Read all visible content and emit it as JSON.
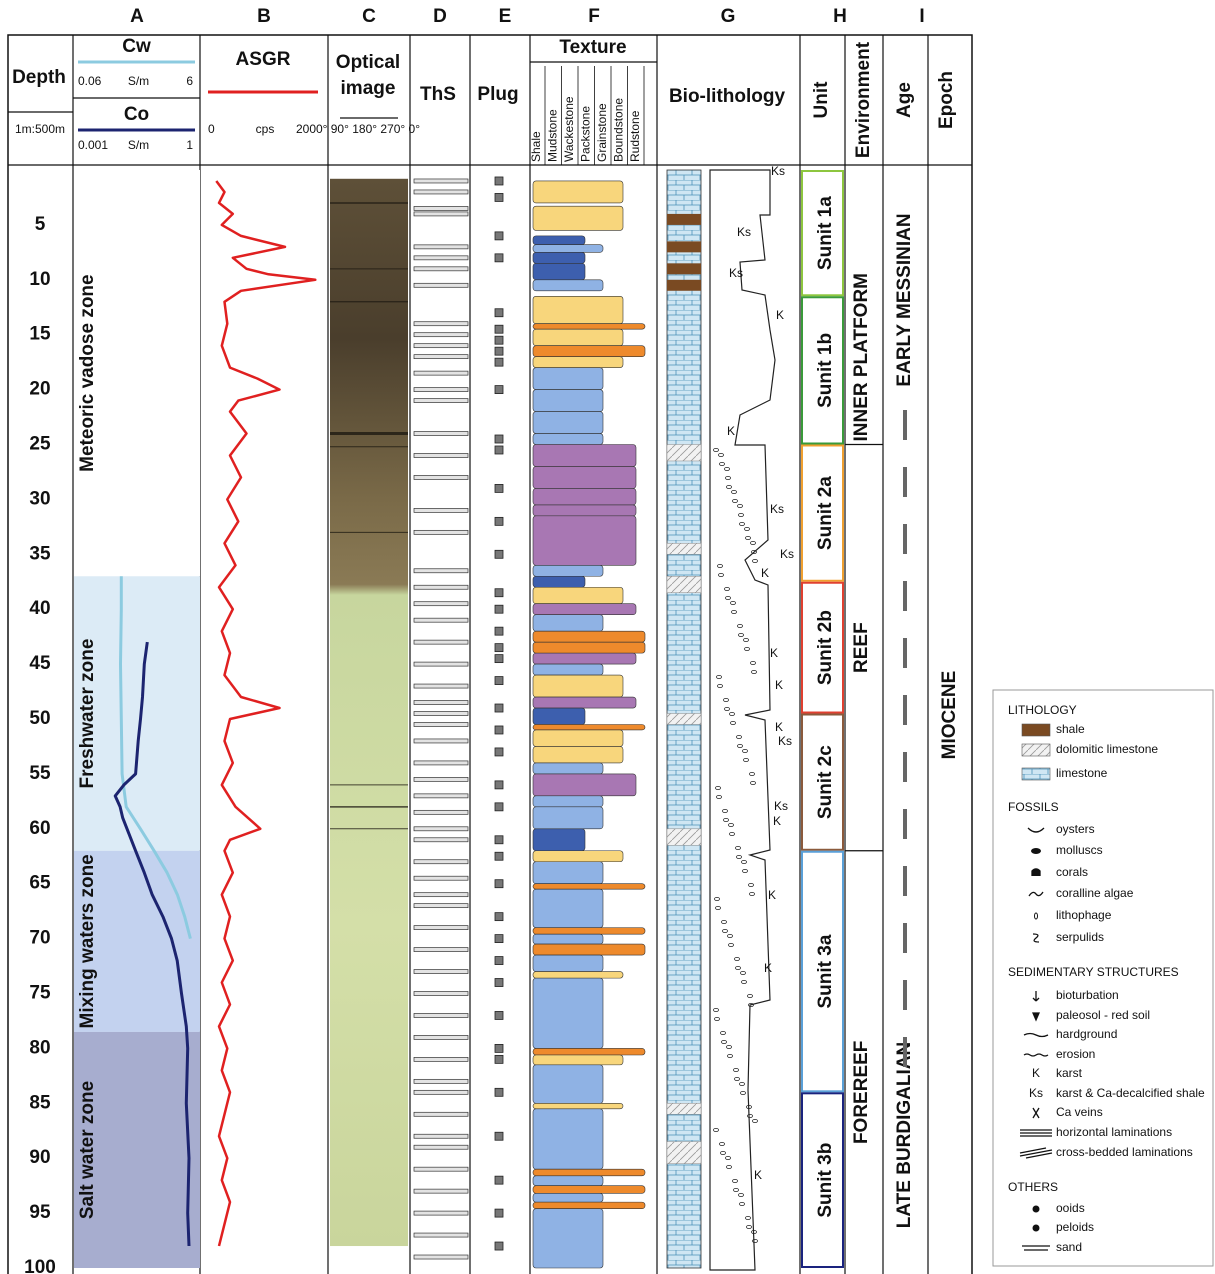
{
  "column_letters": [
    "A",
    "B",
    "C",
    "D",
    "E",
    "F",
    "G",
    "H",
    "I"
  ],
  "depth_header": {
    "title": "Depth",
    "scale": "1m:500m"
  },
  "depth_ticks": [
    5,
    10,
    15,
    20,
    25,
    30,
    35,
    40,
    45,
    50,
    55,
    60,
    65,
    70,
    75,
    80,
    85,
    90,
    95,
    100
  ],
  "cw": {
    "title": "Cw",
    "min": 0.06,
    "unit": "S/m",
    "max": 6,
    "scale": "log",
    "color": "#8ccbe0",
    "depth": [
      37,
      40,
      45,
      50,
      55,
      58,
      60,
      62,
      64,
      66,
      68,
      70
    ],
    "values": [
      0.33,
      0.33,
      0.32,
      0.33,
      0.34,
      0.4,
      0.7,
      1.2,
      2,
      3,
      4,
      5
    ]
  },
  "co": {
    "title": "Co",
    "min": 0.001,
    "unit": "S/m",
    "max": 1,
    "scale": "log",
    "color": "#1c2470",
    "depth": [
      43,
      45,
      48,
      50,
      52,
      55,
      56,
      57,
      58,
      59,
      60,
      62,
      64,
      66,
      68,
      70,
      72,
      75,
      78,
      80,
      85,
      90,
      95,
      98
    ],
    "values": [
      0.06,
      0.05,
      0.045,
      0.04,
      0.035,
      0.03,
      0.015,
      0.009,
      0.012,
      0.014,
      0.018,
      0.03,
      0.05,
      0.08,
      0.15,
      0.25,
      0.35,
      0.45,
      0.6,
      0.65,
      0.6,
      0.7,
      0.65,
      0.7
    ]
  },
  "asgr": {
    "title": "ASGR",
    "min": 0,
    "unit": "cps",
    "max": 200,
    "scale": "linear",
    "color": "#e02020",
    "depth": [
      1,
      2,
      3,
      4,
      5,
      6,
      7,
      8,
      9,
      9.5,
      10,
      11,
      12,
      14,
      16,
      18,
      19,
      20,
      21,
      22,
      24,
      26,
      28,
      30,
      32,
      34,
      36,
      38,
      40,
      42,
      44,
      46,
      48,
      49,
      50,
      52,
      54,
      56,
      58,
      60,
      61,
      62,
      64,
      66,
      68,
      70,
      72,
      74,
      76,
      78,
      80,
      82,
      84,
      86,
      88,
      90,
      92,
      94,
      96,
      98
    ],
    "values": [
      15,
      30,
      20,
      45,
      25,
      60,
      140,
      45,
      70,
      110,
      195,
      60,
      30,
      35,
      25,
      40,
      90,
      130,
      55,
      40,
      70,
      40,
      60,
      35,
      55,
      30,
      50,
      20,
      45,
      25,
      40,
      30,
      60,
      130,
      40,
      30,
      45,
      25,
      50,
      95,
      40,
      30,
      45,
      25,
      40,
      30,
      45,
      25,
      40,
      20,
      35,
      25,
      40,
      30,
      20,
      35,
      25,
      40,
      30,
      20
    ]
  },
  "zones": [
    {
      "label": "Meteoric vadose zone",
      "top": 0,
      "base": 37,
      "color": "#ffffff"
    },
    {
      "label": "Freshwater zone",
      "top": 37,
      "base": 62,
      "color": "#dcebf6"
    },
    {
      "label": "Mixing waters zone",
      "top": 62,
      "base": 78.5,
      "color": "#c3d2ef"
    },
    {
      "label": "Salt water zone",
      "top": 78.5,
      "base": 100,
      "color": "#a7adcf"
    }
  ],
  "optical": {
    "title_1": "Optical",
    "title_2": "image",
    "azimuth": "0° 90° 180° 270° 0°"
  },
  "ths": {
    "title": "ThS",
    "depths": [
      1,
      2,
      3.5,
      4,
      7,
      8,
      9,
      10.5,
      14,
      15,
      16,
      17,
      18.5,
      20,
      21,
      24,
      26,
      28,
      31,
      33,
      36.5,
      38,
      39.5,
      41,
      43,
      45,
      47,
      48.5,
      49.5,
      50.5,
      52,
      54,
      55.5,
      57,
      58.5,
      60,
      61,
      63,
      64.5,
      66,
      67,
      69,
      71,
      73,
      75,
      77,
      79,
      81,
      83,
      84,
      86,
      88,
      89,
      91,
      93,
      95,
      97,
      99
    ]
  },
  "plug": {
    "title": "Plug",
    "depths": [
      1,
      2.5,
      6,
      8,
      13,
      14.5,
      15.5,
      16.5,
      17.5,
      20,
      24.5,
      25.5,
      29,
      32,
      35,
      38.5,
      40,
      42,
      43.5,
      44.5,
      46.5,
      49,
      51,
      53,
      56,
      58,
      61,
      62.5,
      65,
      68,
      70,
      72,
      74,
      77,
      80,
      81,
      84,
      88,
      92,
      95,
      98
    ]
  },
  "texture": {
    "title": "Texture",
    "classes": [
      {
        "name": "Shale",
        "color": "#777777"
      },
      {
        "name": "Mudstone",
        "color": "#3d5fae"
      },
      {
        "name": "Wackestone",
        "color": "#8fb2e4"
      },
      {
        "name": "Packstone",
        "color": "#f8d67c"
      },
      {
        "name": "Grainstone",
        "color": "#ee8a2c"
      },
      {
        "name": "Boundstone",
        "color": "#a877b3"
      },
      {
        "name": "Rudstone",
        "color": "#cccccc"
      }
    ],
    "beds": [
      [
        1,
        3,
        3
      ],
      [
        3.3,
        5.5,
        3
      ],
      [
        6,
        6.8,
        1
      ],
      [
        6.8,
        7.5,
        2
      ],
      [
        7.5,
        8.5,
        1
      ],
      [
        8.5,
        10,
        1
      ],
      [
        10,
        11,
        2
      ],
      [
        11.5,
        14,
        3
      ],
      [
        14,
        14.5,
        4
      ],
      [
        14.5,
        16,
        3
      ],
      [
        16,
        17,
        4
      ],
      [
        17,
        18,
        3
      ],
      [
        18,
        20,
        2
      ],
      [
        20,
        22,
        2
      ],
      [
        22,
        24,
        2
      ],
      [
        24,
        25,
        2
      ],
      [
        25,
        27,
        5
      ],
      [
        27,
        29,
        5
      ],
      [
        29,
        30.5,
        5
      ],
      [
        30.5,
        31.5,
        5
      ],
      [
        31.5,
        36,
        5
      ],
      [
        36,
        37,
        2
      ],
      [
        37,
        38,
        1
      ],
      [
        38,
        39.5,
        3
      ],
      [
        39.5,
        40.5,
        5
      ],
      [
        40.5,
        42,
        2
      ],
      [
        42,
        43,
        4
      ],
      [
        43,
        44,
        4
      ],
      [
        44,
        45,
        5
      ],
      [
        45,
        46,
        2
      ],
      [
        46,
        48,
        3
      ],
      [
        48,
        49,
        5
      ],
      [
        49,
        50.5,
        1
      ],
      [
        50.5,
        51,
        4
      ],
      [
        51,
        52.5,
        3
      ],
      [
        52.5,
        54,
        3
      ],
      [
        54,
        55,
        2
      ],
      [
        55,
        57,
        5
      ],
      [
        57,
        58,
        2
      ],
      [
        58,
        60,
        2
      ],
      [
        60,
        62,
        1
      ],
      [
        62,
        63,
        3
      ],
      [
        63,
        65,
        2
      ],
      [
        65,
        65.5,
        4
      ],
      [
        65.5,
        69,
        2
      ],
      [
        69,
        69.6,
        4
      ],
      [
        69.6,
        70.5,
        2
      ],
      [
        70.5,
        71.5,
        4
      ],
      [
        71.5,
        73,
        2
      ],
      [
        73,
        73.6,
        3
      ],
      [
        73.6,
        80,
        2
      ],
      [
        80,
        80.6,
        4
      ],
      [
        80.6,
        81.5,
        3
      ],
      [
        81.5,
        85,
        2
      ],
      [
        85,
        85.5,
        3
      ],
      [
        85.5,
        91,
        2
      ],
      [
        91,
        91.6,
        4
      ],
      [
        91.6,
        92.5,
        2
      ],
      [
        92.5,
        93.2,
        4
      ],
      [
        93.2,
        94,
        2
      ],
      [
        94,
        94.6,
        4
      ],
      [
        94.6,
        100,
        2
      ]
    ]
  },
  "biolithology": {
    "title": "Bio-lithology",
    "shale_beds": [
      [
        4,
        5
      ],
      [
        6.5,
        7.5
      ],
      [
        8.5,
        9.5
      ],
      [
        10,
        11
      ]
    ],
    "dolomite_beds": [
      [
        25,
        26.5
      ],
      [
        34,
        35
      ],
      [
        37,
        38.5
      ],
      [
        49.5,
        50.5
      ],
      [
        60,
        61.5
      ],
      [
        85,
        86
      ],
      [
        88.5,
        90.5
      ]
    ],
    "karst_labels": [
      "Ks",
      "Ks",
      "Ks",
      "K",
      "K",
      "Ks",
      "Ks",
      "K",
      "K",
      "K",
      "K",
      "Ks",
      "Ks",
      "K",
      "K",
      "K",
      "K"
    ]
  },
  "unit": {
    "title": "Unit",
    "units": [
      {
        "label": "Sunit 1a",
        "top": 0,
        "base": 11.5,
        "color": "#8dc63f"
      },
      {
        "label": "Sunit 1b",
        "top": 11.5,
        "base": 25,
        "color": "#3a9a3a"
      },
      {
        "label": "Sunit 2a",
        "top": 25,
        "base": 37.5,
        "color": "#f0a030"
      },
      {
        "label": "Sunit 2b",
        "top": 37.5,
        "base": 49.5,
        "color": "#e04030"
      },
      {
        "label": "Sunit 2c",
        "top": 49.5,
        "base": 62,
        "color": "#8b5a3c"
      },
      {
        "label": "Sunit 3a",
        "top": 62,
        "base": 84,
        "color": "#5aa0d8"
      },
      {
        "label": "Sunit 3b",
        "top": 84,
        "base": 100,
        "color": "#1a237e"
      }
    ]
  },
  "environment": {
    "title": "Environment",
    "items": [
      {
        "label": "INNER PLATFORM",
        "top": 0,
        "base": 25,
        "color": "#4aa3b8"
      },
      {
        "label": "REEF",
        "top": 25,
        "base": 62,
        "color": "#e86a1a"
      },
      {
        "label": "FOREREEF",
        "top": 62,
        "base": 100,
        "color": "#3a7cc0"
      }
    ]
  },
  "age": {
    "title": "Age",
    "items": [
      "EARLY MESSINIAN",
      "LATE BURDIGALIAN"
    ]
  },
  "epoch": {
    "title": "Epoch",
    "label": "MIOCENE"
  },
  "legend": {
    "sections": [
      {
        "title": "LITHOLOGY",
        "items": [
          "shale",
          "dolomitic limestone",
          "limestone"
        ]
      },
      {
        "title": "FOSSILS",
        "items": [
          "oysters",
          "molluscs",
          "corals",
          "coralline algae",
          "lithophage",
          "serpulids"
        ]
      },
      {
        "title": "SEDIMENTARY STRUCTURES",
        "items": [
          "bioturbation",
          "paleosol - red soil",
          "hardground",
          "erosion",
          "karst",
          "karst & Ca-decalcified shale",
          "Ca veins",
          "horizontal laminations",
          "cross-bedded laminations"
        ]
      },
      {
        "title": "OTHERS",
        "items": [
          "ooids",
          "peloids",
          "sand"
        ]
      }
    ],
    "symbols": {
      "karst": "K",
      "karst_shale": "Ks"
    }
  }
}
